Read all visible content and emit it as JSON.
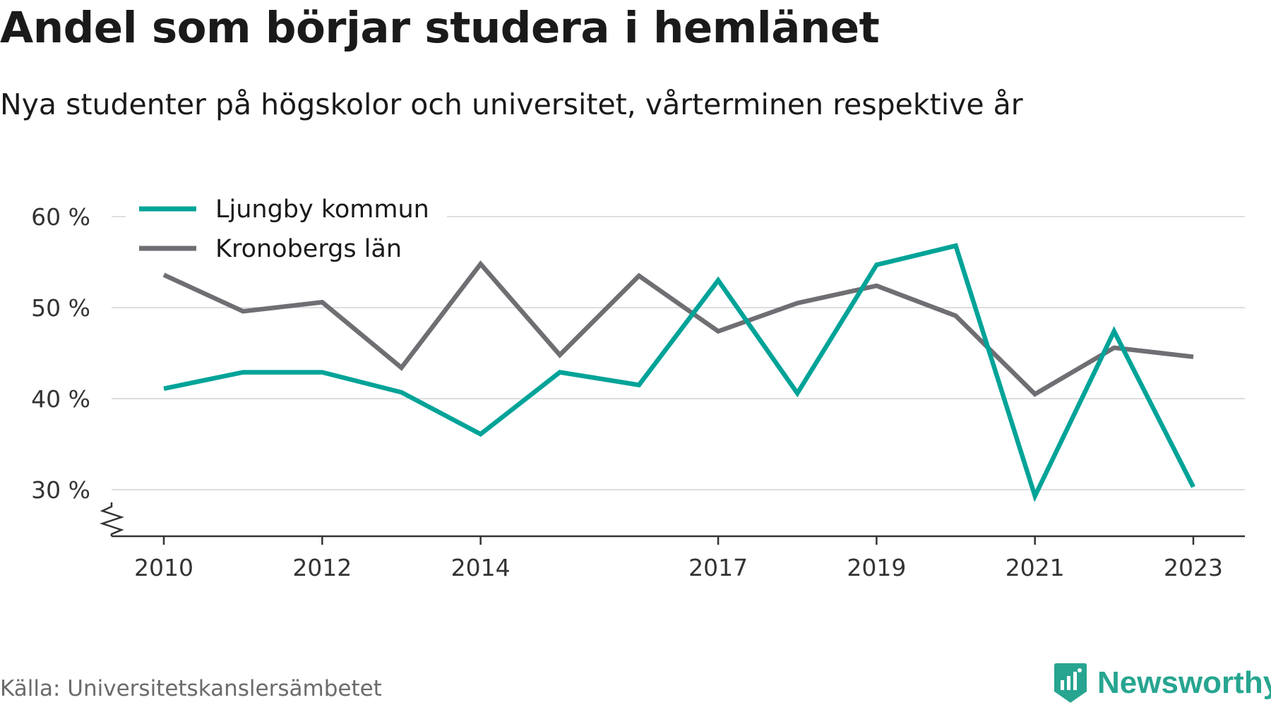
{
  "header": {
    "title": "Andel som börjar studera i hemlänet",
    "subtitle": "Nya studenter på högskolor och universitet, vårterminen respektive år"
  },
  "footer": {
    "source": "Källa: Universitetskanslersämbetet",
    "brand_name": "Newsworthy",
    "brand_icon": "newsworthy-logo-icon",
    "brand_color": "#27a590"
  },
  "chart_data": {
    "type": "line",
    "title": "Andel som börjar studera i hemlänet",
    "subtitle": "Nya studenter på högskolor och universitet, vårterminen respektive år",
    "x": [
      2010,
      2011,
      2012,
      2013,
      2014,
      2015,
      2016,
      2017,
      2018,
      2019,
      2020,
      2021,
      2022,
      2023
    ],
    "x_tick_values": [
      2010,
      2012,
      2014,
      2017,
      2019,
      2021,
      2023
    ],
    "x_tick_labels": [
      "2010",
      "2012",
      "2014",
      "2017",
      "2019",
      "2021",
      "2023"
    ],
    "y_tick_values": [
      30,
      40,
      50,
      60
    ],
    "y_tick_labels": [
      "30 %",
      "40 %",
      "50 %",
      "60 %"
    ],
    "ylim": [
      25,
      60
    ],
    "y_axis_break": true,
    "grid": "horizontal",
    "legend_position": "top-left",
    "series": [
      {
        "name": "Ljungby kommun",
        "color": "#00a398",
        "values": [
          41.1,
          42.9,
          42.9,
          40.7,
          36.1,
          42.9,
          41.5,
          53.0,
          40.6,
          54.7,
          56.8,
          29.3,
          47.4,
          30.3
        ]
      },
      {
        "name": "Kronobergs län",
        "color": "#6e6e73",
        "values": [
          53.6,
          49.6,
          50.6,
          43.4,
          54.8,
          44.8,
          53.5,
          47.4,
          50.5,
          52.4,
          49.1,
          40.5,
          45.6,
          44.6
        ]
      }
    ]
  }
}
